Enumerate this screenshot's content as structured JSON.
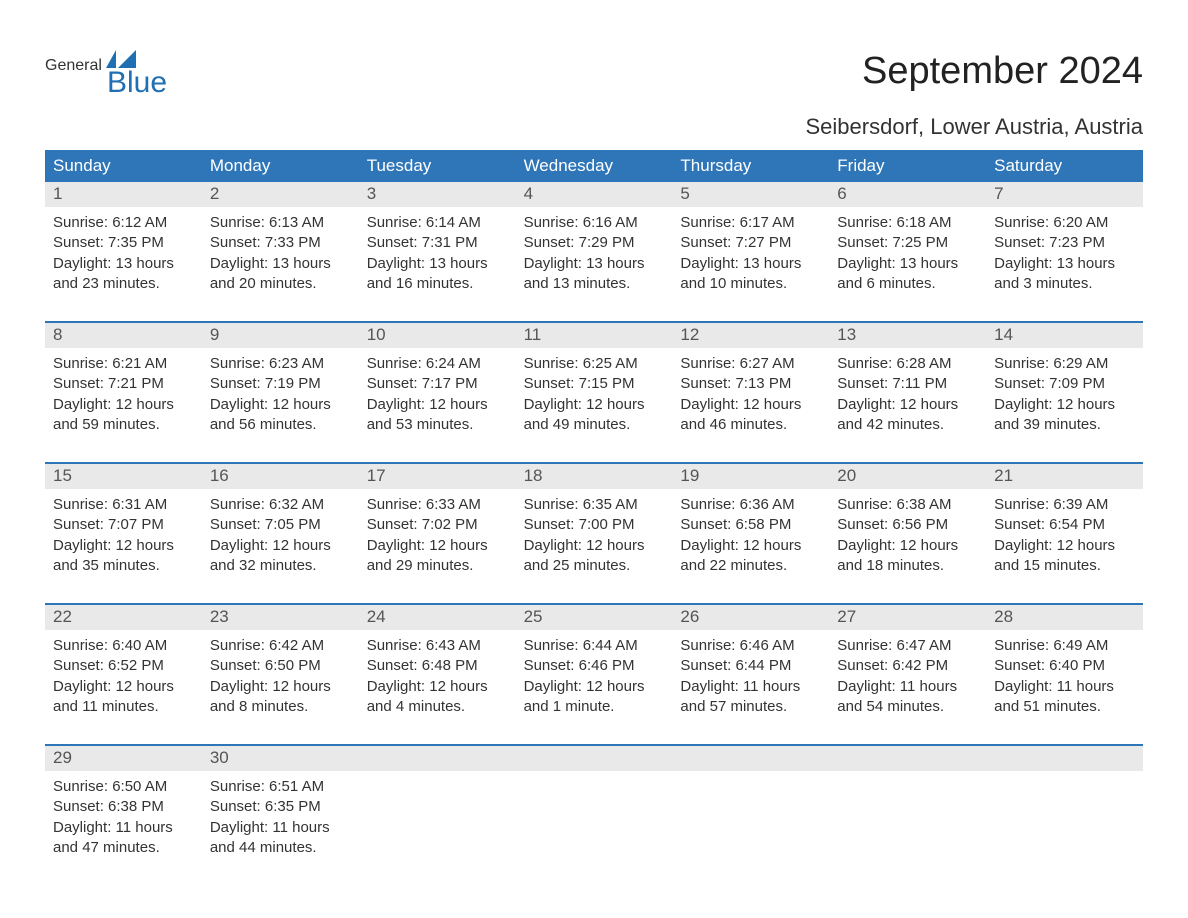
{
  "logo": {
    "line1": "General",
    "line2": "Blue"
  },
  "title": "September 2024",
  "location": "Seibersdorf, Lower Austria, Austria",
  "colors": {
    "header_bg": "#2f76b8",
    "header_text": "#ffffff",
    "daynum_bg": "#e9e9e9",
    "week_border": "#2f76b8",
    "text": "#333333",
    "logo_blue": "#1f6fb2",
    "background": "#ffffff"
  },
  "typography": {
    "title_fontsize": 38,
    "location_fontsize": 22,
    "weekday_fontsize": 17,
    "daynum_fontsize": 17,
    "body_fontsize": 15
  },
  "weekdays": [
    "Sunday",
    "Monday",
    "Tuesday",
    "Wednesday",
    "Thursday",
    "Friday",
    "Saturday"
  ],
  "weeks": [
    {
      "days": [
        {
          "num": "1",
          "sunrise": "Sunrise: 6:12 AM",
          "sunset": "Sunset: 7:35 PM",
          "day1": "Daylight: 13 hours",
          "day2": "and 23 minutes."
        },
        {
          "num": "2",
          "sunrise": "Sunrise: 6:13 AM",
          "sunset": "Sunset: 7:33 PM",
          "day1": "Daylight: 13 hours",
          "day2": "and 20 minutes."
        },
        {
          "num": "3",
          "sunrise": "Sunrise: 6:14 AM",
          "sunset": "Sunset: 7:31 PM",
          "day1": "Daylight: 13 hours",
          "day2": "and 16 minutes."
        },
        {
          "num": "4",
          "sunrise": "Sunrise: 6:16 AM",
          "sunset": "Sunset: 7:29 PM",
          "day1": "Daylight: 13 hours",
          "day2": "and 13 minutes."
        },
        {
          "num": "5",
          "sunrise": "Sunrise: 6:17 AM",
          "sunset": "Sunset: 7:27 PM",
          "day1": "Daylight: 13 hours",
          "day2": "and 10 minutes."
        },
        {
          "num": "6",
          "sunrise": "Sunrise: 6:18 AM",
          "sunset": "Sunset: 7:25 PM",
          "day1": "Daylight: 13 hours",
          "day2": "and 6 minutes."
        },
        {
          "num": "7",
          "sunrise": "Sunrise: 6:20 AM",
          "sunset": "Sunset: 7:23 PM",
          "day1": "Daylight: 13 hours",
          "day2": "and 3 minutes."
        }
      ]
    },
    {
      "days": [
        {
          "num": "8",
          "sunrise": "Sunrise: 6:21 AM",
          "sunset": "Sunset: 7:21 PM",
          "day1": "Daylight: 12 hours",
          "day2": "and 59 minutes."
        },
        {
          "num": "9",
          "sunrise": "Sunrise: 6:23 AM",
          "sunset": "Sunset: 7:19 PM",
          "day1": "Daylight: 12 hours",
          "day2": "and 56 minutes."
        },
        {
          "num": "10",
          "sunrise": "Sunrise: 6:24 AM",
          "sunset": "Sunset: 7:17 PM",
          "day1": "Daylight: 12 hours",
          "day2": "and 53 minutes."
        },
        {
          "num": "11",
          "sunrise": "Sunrise: 6:25 AM",
          "sunset": "Sunset: 7:15 PM",
          "day1": "Daylight: 12 hours",
          "day2": "and 49 minutes."
        },
        {
          "num": "12",
          "sunrise": "Sunrise: 6:27 AM",
          "sunset": "Sunset: 7:13 PM",
          "day1": "Daylight: 12 hours",
          "day2": "and 46 minutes."
        },
        {
          "num": "13",
          "sunrise": "Sunrise: 6:28 AM",
          "sunset": "Sunset: 7:11 PM",
          "day1": "Daylight: 12 hours",
          "day2": "and 42 minutes."
        },
        {
          "num": "14",
          "sunrise": "Sunrise: 6:29 AM",
          "sunset": "Sunset: 7:09 PM",
          "day1": "Daylight: 12 hours",
          "day2": "and 39 minutes."
        }
      ]
    },
    {
      "days": [
        {
          "num": "15",
          "sunrise": "Sunrise: 6:31 AM",
          "sunset": "Sunset: 7:07 PM",
          "day1": "Daylight: 12 hours",
          "day2": "and 35 minutes."
        },
        {
          "num": "16",
          "sunrise": "Sunrise: 6:32 AM",
          "sunset": "Sunset: 7:05 PM",
          "day1": "Daylight: 12 hours",
          "day2": "and 32 minutes."
        },
        {
          "num": "17",
          "sunrise": "Sunrise: 6:33 AM",
          "sunset": "Sunset: 7:02 PM",
          "day1": "Daylight: 12 hours",
          "day2": "and 29 minutes."
        },
        {
          "num": "18",
          "sunrise": "Sunrise: 6:35 AM",
          "sunset": "Sunset: 7:00 PM",
          "day1": "Daylight: 12 hours",
          "day2": "and 25 minutes."
        },
        {
          "num": "19",
          "sunrise": "Sunrise: 6:36 AM",
          "sunset": "Sunset: 6:58 PM",
          "day1": "Daylight: 12 hours",
          "day2": "and 22 minutes."
        },
        {
          "num": "20",
          "sunrise": "Sunrise: 6:38 AM",
          "sunset": "Sunset: 6:56 PM",
          "day1": "Daylight: 12 hours",
          "day2": "and 18 minutes."
        },
        {
          "num": "21",
          "sunrise": "Sunrise: 6:39 AM",
          "sunset": "Sunset: 6:54 PM",
          "day1": "Daylight: 12 hours",
          "day2": "and 15 minutes."
        }
      ]
    },
    {
      "days": [
        {
          "num": "22",
          "sunrise": "Sunrise: 6:40 AM",
          "sunset": "Sunset: 6:52 PM",
          "day1": "Daylight: 12 hours",
          "day2": "and 11 minutes."
        },
        {
          "num": "23",
          "sunrise": "Sunrise: 6:42 AM",
          "sunset": "Sunset: 6:50 PM",
          "day1": "Daylight: 12 hours",
          "day2": "and 8 minutes."
        },
        {
          "num": "24",
          "sunrise": "Sunrise: 6:43 AM",
          "sunset": "Sunset: 6:48 PM",
          "day1": "Daylight: 12 hours",
          "day2": "and 4 minutes."
        },
        {
          "num": "25",
          "sunrise": "Sunrise: 6:44 AM",
          "sunset": "Sunset: 6:46 PM",
          "day1": "Daylight: 12 hours",
          "day2": "and 1 minute."
        },
        {
          "num": "26",
          "sunrise": "Sunrise: 6:46 AM",
          "sunset": "Sunset: 6:44 PM",
          "day1": "Daylight: 11 hours",
          "day2": "and 57 minutes."
        },
        {
          "num": "27",
          "sunrise": "Sunrise: 6:47 AM",
          "sunset": "Sunset: 6:42 PM",
          "day1": "Daylight: 11 hours",
          "day2": "and 54 minutes."
        },
        {
          "num": "28",
          "sunrise": "Sunrise: 6:49 AM",
          "sunset": "Sunset: 6:40 PM",
          "day1": "Daylight: 11 hours",
          "day2": "and 51 minutes."
        }
      ]
    },
    {
      "days": [
        {
          "num": "29",
          "sunrise": "Sunrise: 6:50 AM",
          "sunset": "Sunset: 6:38 PM",
          "day1": "Daylight: 11 hours",
          "day2": "and 47 minutes."
        },
        {
          "num": "30",
          "sunrise": "Sunrise: 6:51 AM",
          "sunset": "Sunset: 6:35 PM",
          "day1": "Daylight: 11 hours",
          "day2": "and 44 minutes."
        },
        {
          "num": "",
          "sunrise": "",
          "sunset": "",
          "day1": "",
          "day2": ""
        },
        {
          "num": "",
          "sunrise": "",
          "sunset": "",
          "day1": "",
          "day2": ""
        },
        {
          "num": "",
          "sunrise": "",
          "sunset": "",
          "day1": "",
          "day2": ""
        },
        {
          "num": "",
          "sunrise": "",
          "sunset": "",
          "day1": "",
          "day2": ""
        },
        {
          "num": "",
          "sunrise": "",
          "sunset": "",
          "day1": "",
          "day2": ""
        }
      ]
    }
  ]
}
